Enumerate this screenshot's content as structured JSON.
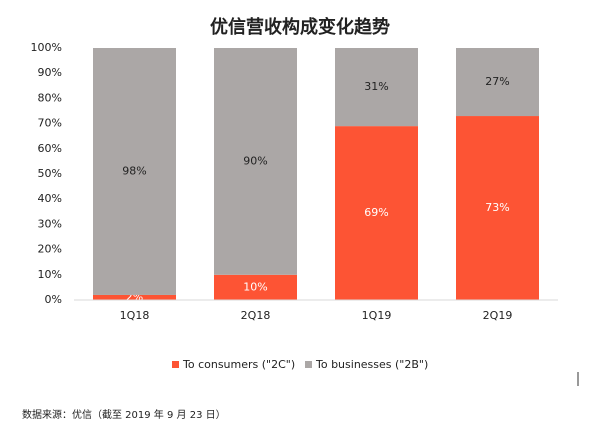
{
  "chart_data": {
    "type": "stacked_bar",
    "title": "优信营收构成变化趋势",
    "categories": [
      "1Q18",
      "2Q18",
      "1Q19",
      "2Q19"
    ],
    "series": [
      {
        "name": "To consumers (\"2C\")",
        "color": "#fd5434",
        "label_color": "#ffffff",
        "values": [
          2,
          10,
          69,
          73
        ],
        "value_labels": [
          "2%",
          "10%",
          "69%",
          "73%"
        ]
      },
      {
        "name": "To businesses (\"2B\")",
        "color": "#aba7a6",
        "label_color": "#222222",
        "values": [
          98,
          90,
          31,
          27
        ],
        "value_labels": [
          "98%",
          "90%",
          "31%",
          "27%"
        ]
      }
    ],
    "ylim": [
      0,
      100
    ],
    "yticks": [
      {
        "value": 0,
        "label": "0%"
      },
      {
        "value": 10,
        "label": "10%"
      },
      {
        "value": 20,
        "label": "20%"
      },
      {
        "value": 30,
        "label": "30%"
      },
      {
        "value": 40,
        "label": "40%"
      },
      {
        "value": 50,
        "label": "50%"
      },
      {
        "value": 60,
        "label": "60%"
      },
      {
        "value": 70,
        "label": "70%"
      },
      {
        "value": 80,
        "label": "80%"
      },
      {
        "value": 90,
        "label": "90%"
      },
      {
        "value": 100,
        "label": "100%"
      }
    ],
    "grid": false,
    "legend": "bottom",
    "source": "数据来源：优信（截至 2019 年 9 月 23 日）"
  }
}
